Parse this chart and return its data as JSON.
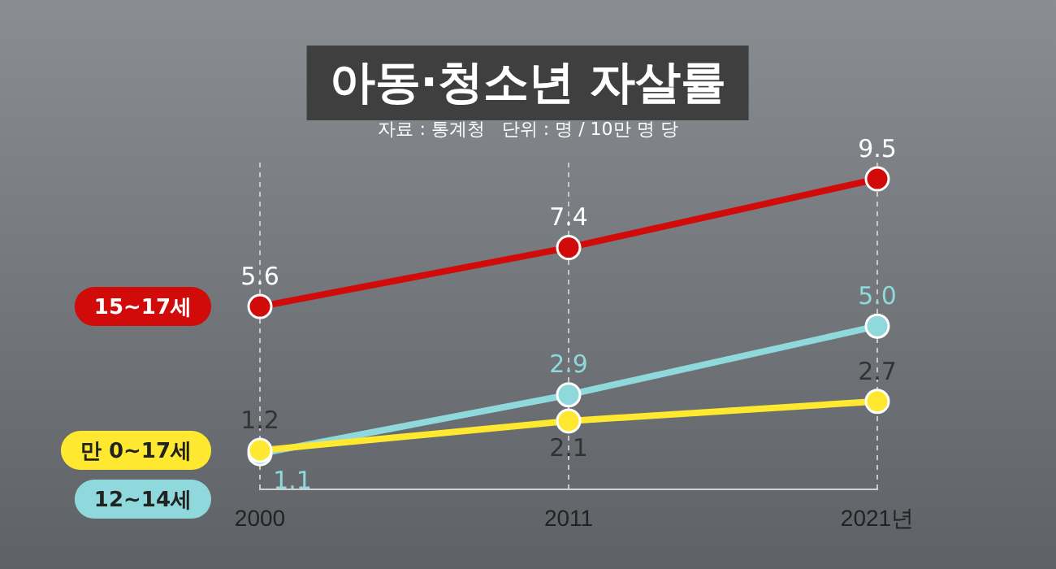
{
  "chart_data": {
    "type": "line",
    "title": "아동·청소년 자살률",
    "subtitle": "자료 : 통계청   단위 : 명 / 10만 명 당",
    "categories": [
      "2000",
      "2011",
      "2021년"
    ],
    "series": [
      {
        "name": "15~17세",
        "color": "#d10a0a",
        "values": [
          5.6,
          7.4,
          9.5
        ],
        "value_labels": [
          "5.6",
          "7.4",
          "9.5"
        ]
      },
      {
        "name": "만 0~17세",
        "color": "#ffe830",
        "values": [
          1.2,
          2.1,
          2.7
        ],
        "value_labels": [
          "1.2",
          "2.1",
          "2.7"
        ]
      },
      {
        "name": "12~14세",
        "color": "#8fd8dc",
        "values": [
          1.1,
          2.9,
          5.0
        ],
        "value_labels": [
          "1.1",
          "2.9",
          "5.0"
        ]
      }
    ],
    "grid": "x",
    "legend": "left",
    "marker": "circle",
    "line_style": "solid"
  }
}
